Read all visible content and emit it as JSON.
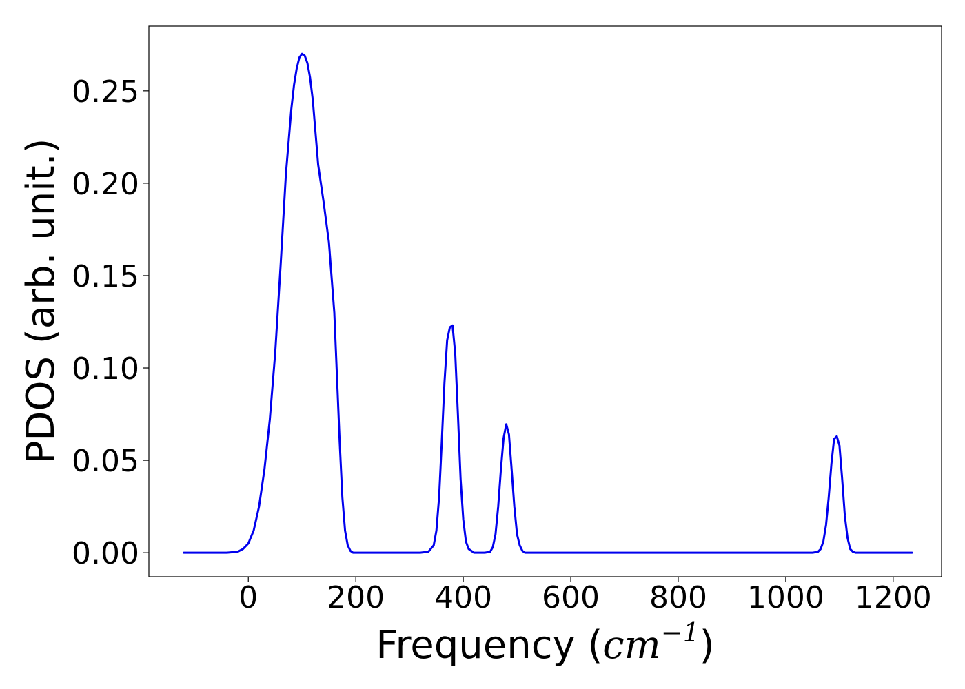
{
  "chart_data": {
    "type": "line",
    "title": "",
    "xlabel": {
      "prefix": "Frequency (",
      "unit_base": "cm",
      "unit_exponent": "−1",
      "suffix": ")"
    },
    "ylabel": "PDOS (arb. unit.)",
    "xlim": [
      -185,
      1290
    ],
    "ylim": [
      -0.013,
      0.285
    ],
    "xticks": [
      0,
      200,
      400,
      600,
      800,
      1000,
      1200
    ],
    "xtick_labels": [
      "0",
      "200",
      "400",
      "600",
      "800",
      "1000",
      "1200"
    ],
    "yticks": [
      0.0,
      0.05,
      0.1,
      0.15,
      0.2,
      0.25
    ],
    "ytick_labels": [
      "0.00",
      "0.05",
      "0.10",
      "0.15",
      "0.20",
      "0.25"
    ],
    "grid": false,
    "legend": "none",
    "series": [
      {
        "color": "#0000ee",
        "x": [
          -120,
          -100,
          -80,
          -60,
          -40,
          -20,
          -10,
          0,
          10,
          20,
          30,
          40,
          50,
          60,
          70,
          80,
          85,
          90,
          95,
          100,
          105,
          110,
          115,
          120,
          130,
          140,
          150,
          160,
          165,
          170,
          175,
          180,
          185,
          190,
          195,
          200,
          210,
          220,
          240,
          260,
          280,
          300,
          320,
          335,
          345,
          350,
          355,
          360,
          365,
          370,
          375,
          380,
          385,
          390,
          395,
          400,
          405,
          410,
          420,
          430,
          440,
          450,
          455,
          460,
          465,
          470,
          475,
          480,
          485,
          490,
          495,
          500,
          505,
          510,
          515,
          520,
          530,
          540,
          560,
          600,
          700,
          800,
          900,
          1000,
          1050,
          1060,
          1065,
          1070,
          1075,
          1080,
          1085,
          1090,
          1095,
          1100,
          1105,
          1110,
          1115,
          1120,
          1125,
          1130,
          1135,
          1140,
          1150,
          1160,
          1180,
          1200,
          1220,
          1235
        ],
        "y": [
          0.0,
          0.0,
          0.0,
          0.0,
          0.0,
          0.0005,
          0.002,
          0.005,
          0.012,
          0.025,
          0.045,
          0.072,
          0.108,
          0.155,
          0.205,
          0.24,
          0.253,
          0.262,
          0.268,
          0.27,
          0.269,
          0.265,
          0.257,
          0.245,
          0.21,
          0.19,
          0.168,
          0.13,
          0.095,
          0.06,
          0.03,
          0.012,
          0.004,
          0.001,
          0.0,
          0.0,
          0.0,
          0.0,
          0.0,
          0.0,
          0.0,
          0.0,
          0.0,
          0.0005,
          0.004,
          0.012,
          0.03,
          0.06,
          0.092,
          0.115,
          0.122,
          0.123,
          0.108,
          0.075,
          0.04,
          0.018,
          0.006,
          0.002,
          0.0,
          0.0,
          0.0,
          0.0005,
          0.003,
          0.01,
          0.025,
          0.045,
          0.062,
          0.0695,
          0.064,
          0.045,
          0.025,
          0.01,
          0.004,
          0.001,
          0.0,
          0.0,
          0.0,
          0.0,
          0.0,
          0.0,
          0.0,
          0.0,
          0.0,
          0.0,
          0.0,
          0.0005,
          0.002,
          0.006,
          0.015,
          0.03,
          0.048,
          0.0615,
          0.063,
          0.058,
          0.04,
          0.02,
          0.008,
          0.002,
          0.0005,
          0.0,
          0.0,
          0.0,
          0.0,
          0.0,
          0.0,
          0.0,
          0.0,
          0.0
        ]
      }
    ]
  }
}
